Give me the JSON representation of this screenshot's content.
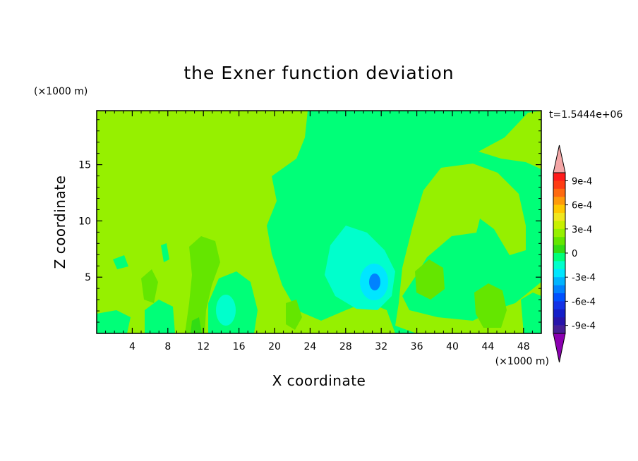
{
  "chart_data": {
    "type": "heatmap",
    "title": "the Exner function deviation",
    "xlabel": "X coordinate",
    "ylabel": "Z coordinate",
    "x_unit": "(×1000 m)",
    "y_unit": "(×1000 m)",
    "time_label": "t=1.5444e+06",
    "xlim": [
      0,
      50
    ],
    "ylim": [
      0,
      19.8
    ],
    "x_ticks": [
      4,
      8,
      12,
      16,
      20,
      24,
      28,
      32,
      36,
      40,
      44,
      48
    ],
    "y_ticks": [
      5,
      10,
      15
    ],
    "colorbar": {
      "min": -0.001,
      "max": 0.001,
      "step": 0.0001,
      "tick_values": [
        0.0009,
        0.0006,
        0.0003,
        0,
        -0.0003,
        -0.0006,
        -0.0009
      ],
      "tick_labels": [
        "9e-4",
        "6e-4",
        "3e-4",
        "0",
        "-3e-4",
        "-6e-4",
        "-9e-4"
      ],
      "colors_top_to_bottom": [
        "#ff1a1a",
        "#ff3c14",
        "#ff6a10",
        "#ff9a0a",
        "#ffc800",
        "#f0e61e",
        "#c8f000",
        "#96f000",
        "#64e600",
        "#32dc14",
        "#00ff78",
        "#00ffcc",
        "#00e6ff",
        "#00b4ff",
        "#0082ff",
        "#0050ff",
        "#1432e6",
        "#141ec8",
        "#2814aa",
        "#461e96"
      ],
      "over_color": "#f4a6a6",
      "under_color": "#8b00b0"
    },
    "regions": [
      {
        "name": "background",
        "value": 5e-05
      },
      {
        "name": "upper-middle band",
        "value": -5e-05
      },
      {
        "name": "right lobe",
        "value": 5e-05
      },
      {
        "name": "central anomaly",
        "value": -0.00015
      },
      {
        "name": "central core",
        "value": -0.0003
      },
      {
        "name": "central minimum",
        "value": -0.00045
      },
      {
        "name": "left column x≈12",
        "value": 0.00015
      },
      {
        "name": "left anomaly x≈15",
        "value": -0.00015
      },
      {
        "name": "right anomaly x≈38",
        "value": 0.00015
      },
      {
        "name": "right anomaly x≈45",
        "value": 0.00015
      }
    ]
  }
}
